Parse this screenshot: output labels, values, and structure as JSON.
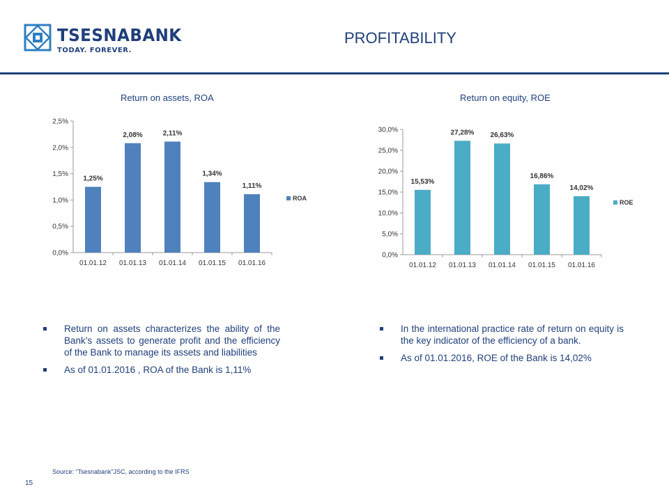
{
  "logo": {
    "name": "TSESNABANK",
    "tagline": "TODAY. FOREVER."
  },
  "page_title": "PROFITABILITY",
  "colors": {
    "brand": "#1f3f7a",
    "roa_bar": "#4f81bd",
    "roe_bar": "#4bacc6"
  },
  "chart_data": [
    {
      "type": "bar",
      "title": "Return on assets, ROA",
      "categories": [
        "01.01.12",
        "01.01.13",
        "01.01.14",
        "01.01.15",
        "01.01.16"
      ],
      "series": [
        {
          "name": "ROA",
          "values": [
            1.25,
            2.08,
            2.11,
            1.34,
            1.11
          ]
        }
      ],
      "data_labels": [
        "1,25%",
        "2,08%",
        "2,11%",
        "1,34%",
        "1,11%"
      ],
      "yticks": [
        "0,0%",
        "0,5%",
        "1,0%",
        "1,5%",
        "2,0%",
        "2,5%"
      ],
      "ylim": [
        0,
        2.5
      ],
      "legend": "right"
    },
    {
      "type": "bar",
      "title": "Return on equity, ROE",
      "categories": [
        "01.01.12",
        "01.01.13",
        "01.01.14",
        "01.01.15",
        "01.01.16"
      ],
      "series": [
        {
          "name": "ROE",
          "values": [
            15.53,
            27.28,
            26.63,
            16.86,
            14.02
          ]
        }
      ],
      "data_labels": [
        "15,53%",
        "27,28%",
        "26,63%",
        "16,86%",
        "14,02%"
      ],
      "yticks": [
        "0,0%",
        "5,0%",
        "10,0%",
        "15,0%",
        "20,0%",
        "25,0%",
        "30,0%"
      ],
      "ylim": [
        0,
        30
      ],
      "legend": "right"
    }
  ],
  "roa_notes": [
    "Return on assets characterizes the ability of the Bank’s assets to generate profit and the efficiency of the Bank to manage its assets and liabilities",
    "As of 01.01.2016 , ROA of the Bank is 1,11%"
  ],
  "roe_notes": [
    "In the international practice rate of return on equity is the key indicator of the efficiency of a bank.",
    "As of 01.01.2016, ROE of the Bank is 14,02%"
  ],
  "source": "Source: “Tsesnabank”JSC, according to the IFRS",
  "page_number": "15"
}
